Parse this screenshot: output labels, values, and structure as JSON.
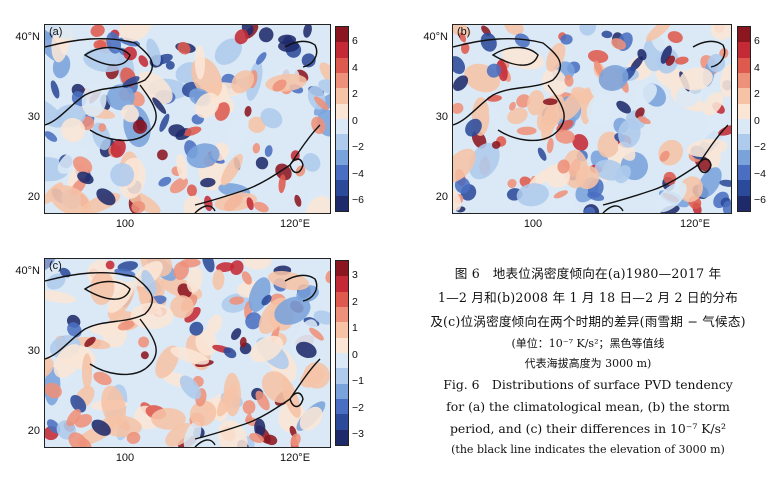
{
  "panels": [
    {
      "label": "(a)",
      "y_ticks": [
        "40°N",
        "30",
        "20"
      ],
      "x_ticks": [
        "100",
        "120°E"
      ],
      "colorbar_ticks": [
        "6",
        "4",
        "2",
        "0",
        "−2",
        "−4",
        "−6"
      ]
    },
    {
      "label": "(b)",
      "y_ticks": [
        "40°N",
        "30",
        "20"
      ],
      "x_ticks": [
        "100",
        "120°E"
      ],
      "colorbar_ticks": [
        "6",
        "4",
        "2",
        "0",
        "−2",
        "−4",
        "−6"
      ]
    },
    {
      "label": "(c)",
      "y_ticks": [
        "40°N",
        "30",
        "20"
      ],
      "x_ticks": [
        "100",
        "120°E"
      ],
      "colorbar_ticks": [
        "3",
        "2",
        "1",
        "0",
        "−1",
        "−2",
        "−3"
      ]
    }
  ],
  "colors": {
    "palette": [
      "#1f2a6b",
      "#2c4a9a",
      "#4a6fc2",
      "#7aa3dc",
      "#aecbed",
      "#dbe9f6",
      "#fbe6d6",
      "#f6c3a6",
      "#ee917a",
      "#de5a4f",
      "#c42a35",
      "#8c1620"
    ],
    "neutral": "#dbe9f6",
    "coast": "#111111"
  },
  "caption": {
    "zh_line1": "图 6　地表位涡密度倾向在(a)1980—2017 年",
    "zh_line2": "1—2 月和(b)2008 年 1 月 18 日—2 月 2 日的分布",
    "zh_line3": "及(c)位涡密度倾向在两个时期的差异(雨雪期 − 气候态)",
    "zh_line4": "(单位：10⁻⁷ K/s²；黑色等值线",
    "zh_line5": "代表海拔高度为 3000 m)",
    "en_line1": "Fig. 6　Distributions of surface PVD tendency",
    "en_line2": "for (a) the climatological mean, (b) the storm",
    "en_line3": "period, and (c) their differences in 10⁻⁷ K/s²",
    "en_line4": "(the black line indicates the elevation of 3000 m)"
  }
}
